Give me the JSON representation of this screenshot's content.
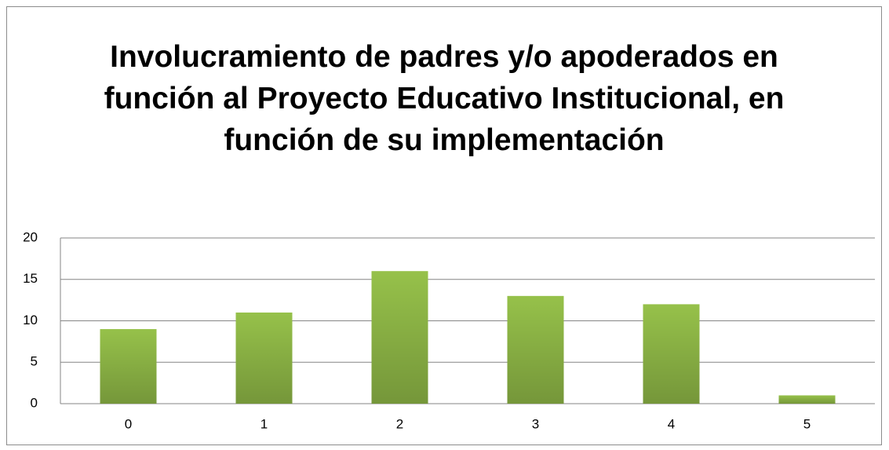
{
  "chart_data": {
    "type": "bar",
    "title": "Involucramiento de padres y/o apoderados en función al Proyecto Educativo Institucional, en función de su implementación",
    "categories": [
      "0",
      "1",
      "2",
      "3",
      "4",
      "5"
    ],
    "values": [
      9,
      11,
      16,
      13,
      12,
      1
    ],
    "color": "#96c14a",
    "ylim": [
      0,
      20
    ],
    "yticks": [
      0,
      5,
      10,
      15,
      20
    ],
    "grid": true
  }
}
